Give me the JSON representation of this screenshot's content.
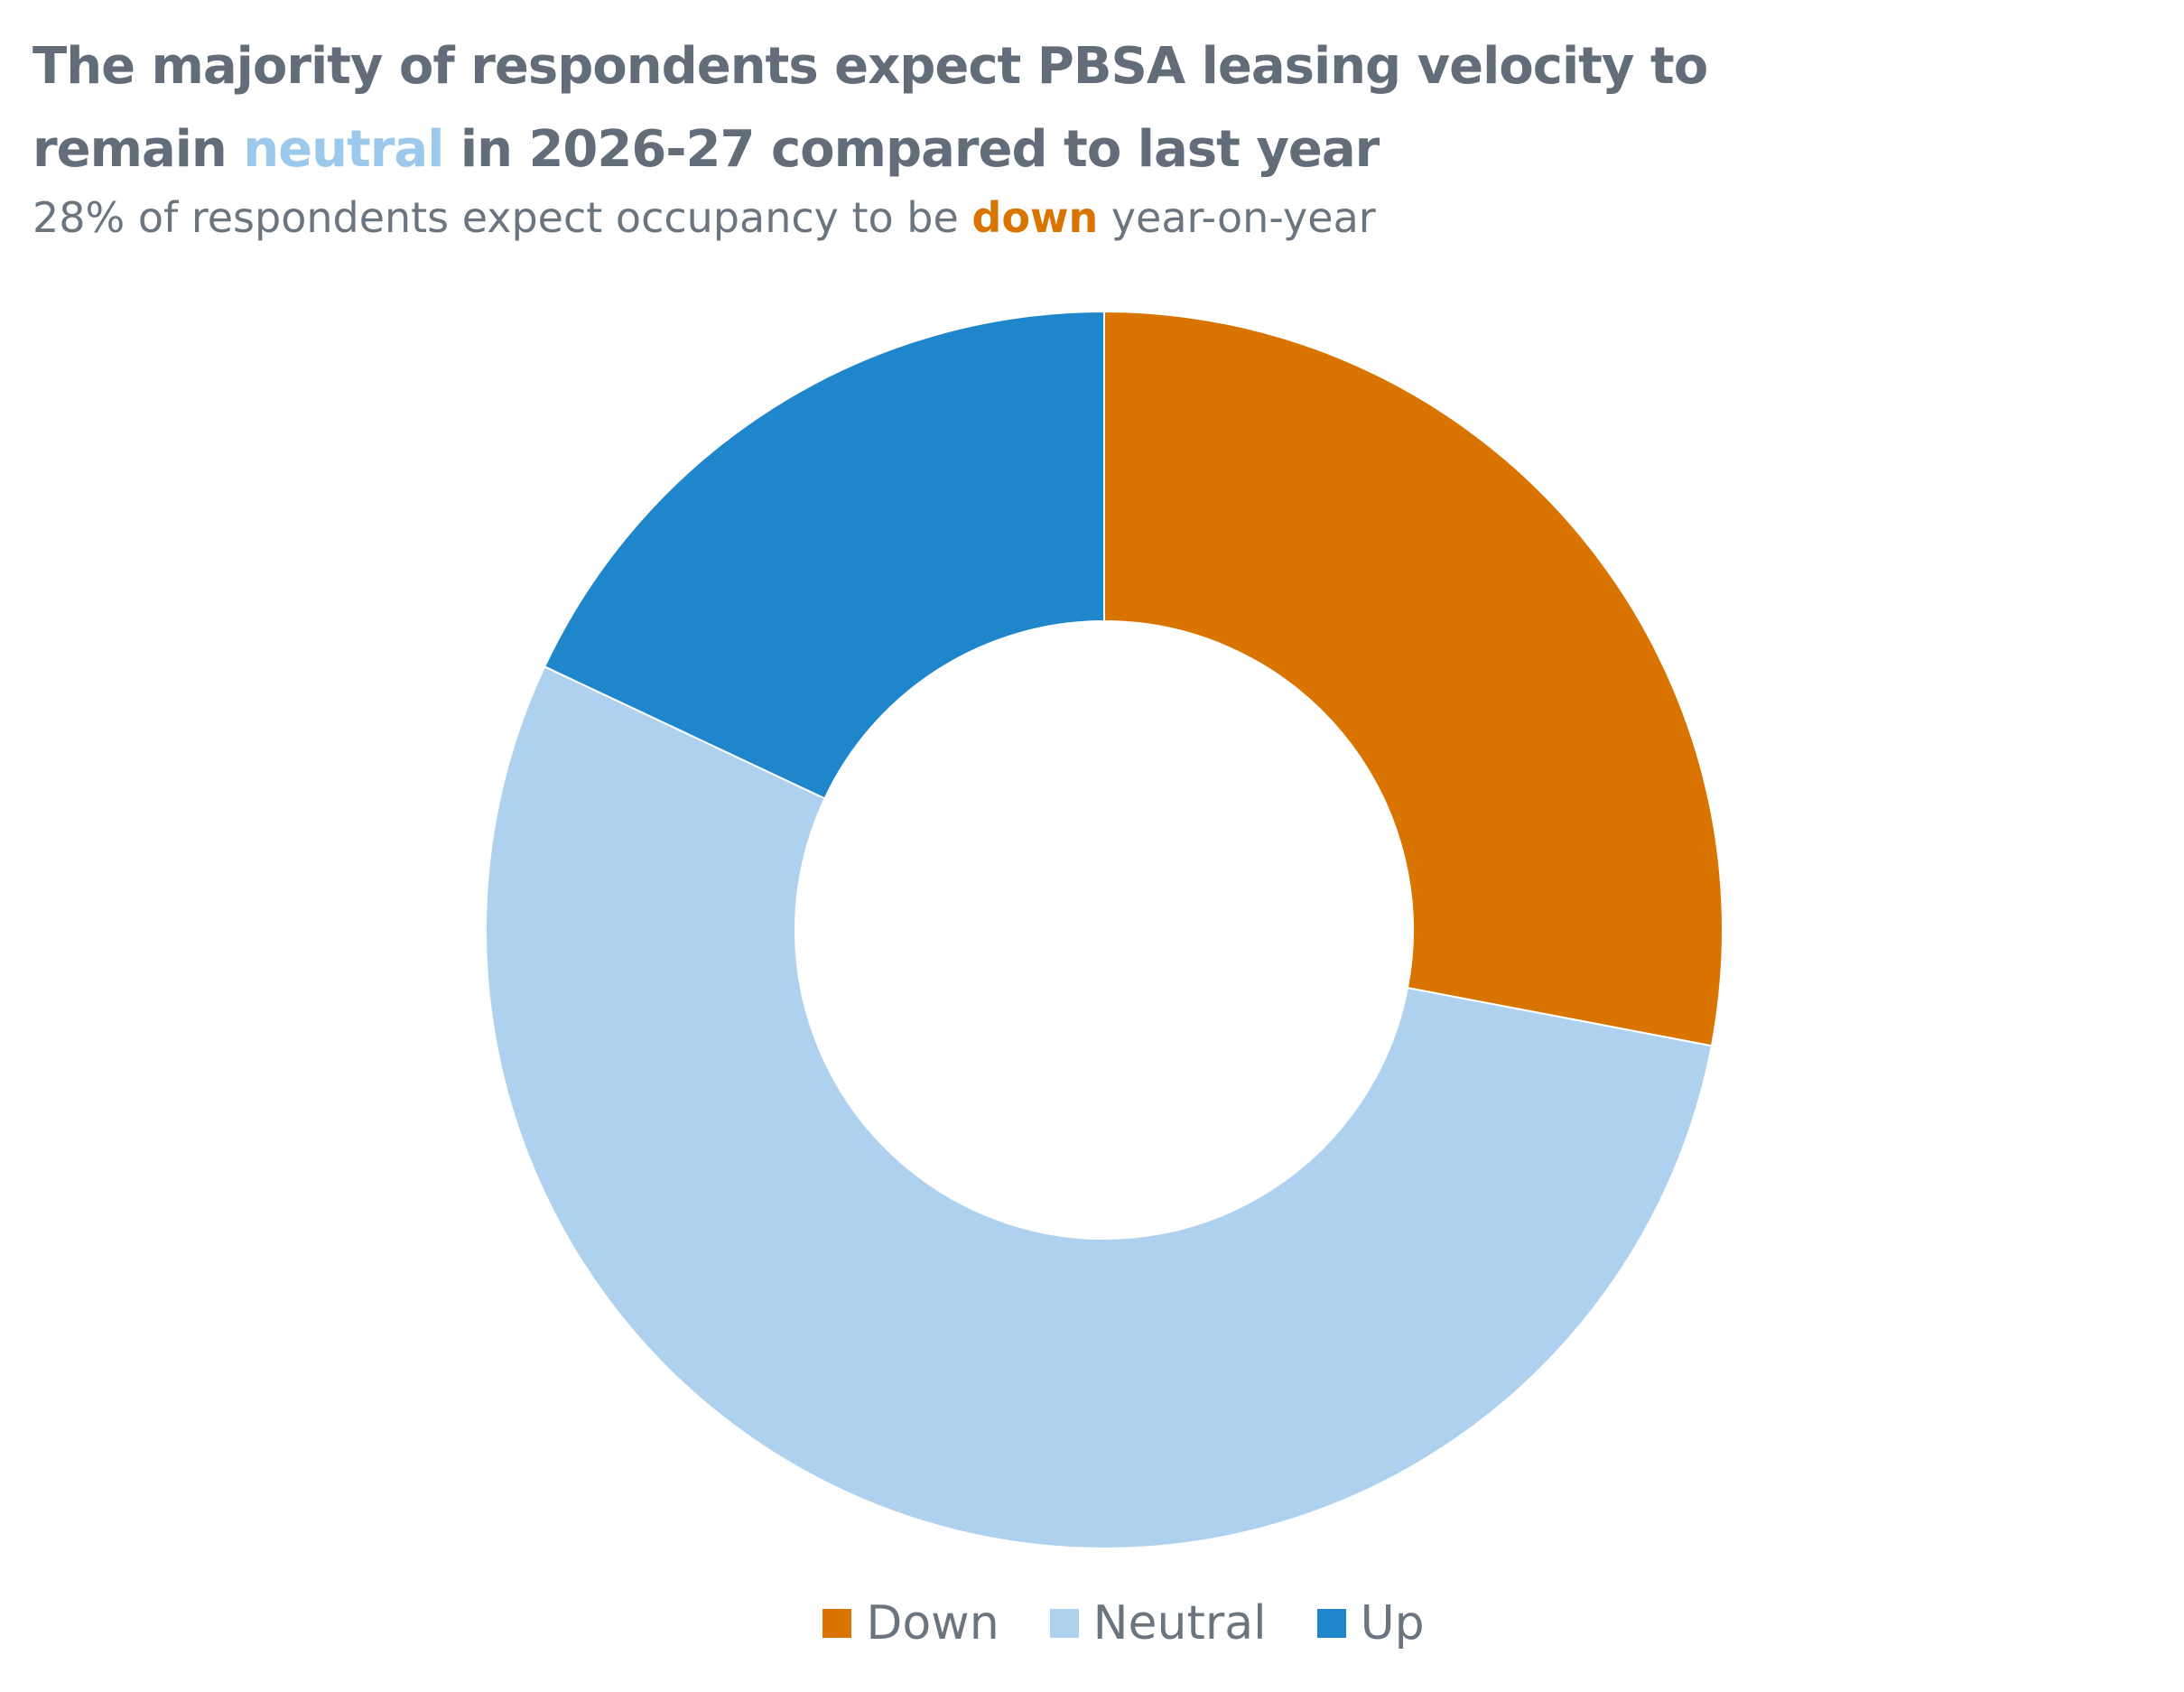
{
  "title": {
    "line1": "The majority of respondents expect PBSA leasing velocity to",
    "line2_before": "remain ",
    "line2_highlight": "neutral",
    "line2_after": " in 2026-27 compared to last year"
  },
  "subtitle": {
    "before": "28% of respondents expect occupancy to be ",
    "highlight": "down",
    "after": " year-on-year"
  },
  "colors": {
    "down": "#d97400",
    "neutral": "#afd1f0",
    "up": "#2086cb",
    "text": "#636d79"
  },
  "chart_data": {
    "type": "pie",
    "variant": "donut",
    "title": "The majority of respondents expect PBSA leasing velocity to remain neutral in 2026-27 compared to last year",
    "subtitle": "28% of respondents expect occupancy to be down year-on-year",
    "categories": [
      "Down",
      "Neutral",
      "Up"
    ],
    "values": [
      28,
      54,
      18
    ],
    "colors": [
      "#d97400",
      "#afd1f0",
      "#2086cb"
    ],
    "start_angle_deg": 0,
    "direction": "clockwise",
    "legend_position": "bottom"
  },
  "legend": {
    "items": [
      {
        "label": "Down"
      },
      {
        "label": "Neutral"
      },
      {
        "label": "Up"
      }
    ]
  }
}
